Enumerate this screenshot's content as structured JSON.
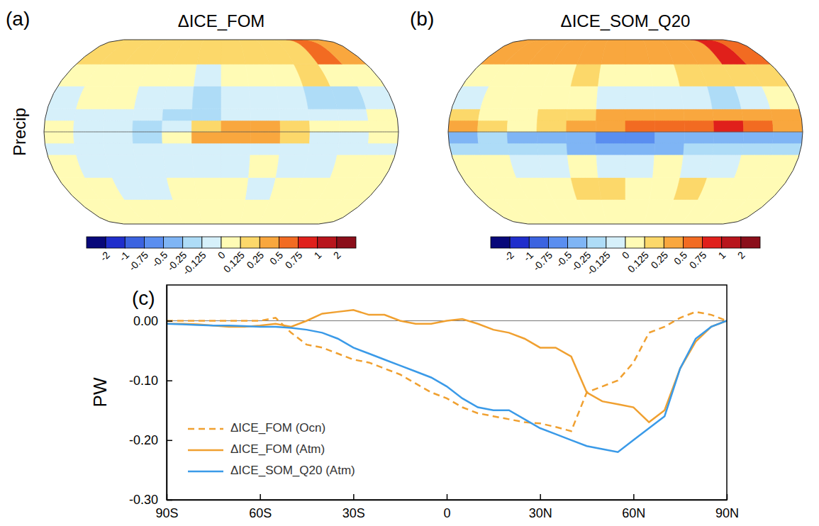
{
  "chart_data": [
    {
      "type": "heatmap",
      "panel_label": "(a)",
      "title": "ΔICE_FOM",
      "ylabel": "Precip",
      "lon_edges": [
        0,
        30,
        60,
        90,
        120,
        150,
        180,
        210,
        240,
        270,
        300,
        330,
        360
      ],
      "lat_edges": [
        -90,
        -60,
        -40,
        -20,
        -10,
        0,
        10,
        20,
        40,
        60,
        90
      ],
      "cells": [
        [
          0.05,
          0.05,
          0.05,
          0.05,
          0.05,
          0.05,
          0.05,
          0.05,
          0.05,
          0.05,
          0.05,
          0.05
        ],
        [
          0.05,
          0.05,
          -0.05,
          -0.05,
          0.05,
          0.05,
          0.05,
          -0.05,
          0.05,
          0.05,
          0.05,
          0.05
        ],
        [
          0.05,
          -0.05,
          -0.1,
          -0.05,
          -0.05,
          -0.1,
          -0.05,
          0.05,
          -0.05,
          -0.05,
          0.05,
          0.05
        ],
        [
          -0.05,
          -0.05,
          -0.1,
          -0.1,
          -0.1,
          -0.05,
          -0.1,
          -0.1,
          -0.05,
          -0.1,
          -0.05,
          -0.05
        ],
        [
          0.05,
          -0.05,
          -0.1,
          -0.2,
          0.1,
          0.3,
          0.35,
          0.3,
          0.2,
          -0.05,
          -0.1,
          0.05
        ],
        [
          0.05,
          -0.05,
          -0.1,
          -0.15,
          -0.1,
          0.2,
          0.3,
          0.3,
          0.2,
          0.1,
          0.05,
          0.05
        ],
        [
          -0.05,
          -0.05,
          -0.1,
          -0.1,
          -0.15,
          -0.2,
          -0.1,
          -0.05,
          -0.1,
          -0.05,
          -0.05,
          0.05
        ],
        [
          -0.05,
          0.05,
          0.05,
          -0.05,
          -0.1,
          -0.15,
          -0.1,
          -0.05,
          -0.05,
          -0.15,
          -0.2,
          -0.05
        ],
        [
          0.05,
          0.05,
          0.05,
          0.05,
          0.05,
          -0.05,
          0.05,
          0.05,
          0.05,
          0.15,
          0.1,
          0.05
        ],
        [
          0.15,
          0.15,
          0.15,
          0.15,
          0.15,
          0.15,
          0.15,
          0.15,
          0.2,
          0.2,
          0.6,
          0.3
        ]
      ],
      "colorbar": {
        "levels": [
          -2,
          -1,
          -0.75,
          -0.5,
          -0.25,
          -0.125,
          0,
          0.125,
          0.25,
          0.5,
          0.75,
          1,
          2
        ],
        "colors": [
          "#08087a",
          "#1f2ecc",
          "#3b63e0",
          "#5a8ef0",
          "#7fb5f5",
          "#aedcf7",
          "#d6f0fa",
          "#fffbb5",
          "#fcd86a",
          "#f9a73e",
          "#f26b22",
          "#e0201b",
          "#b8151c",
          "#8b0e1a"
        ]
      }
    },
    {
      "type": "heatmap",
      "panel_label": "(b)",
      "title": "ΔICE_SOM_Q20",
      "lon_edges": [
        0,
        30,
        60,
        90,
        120,
        150,
        180,
        210,
        240,
        270,
        300,
        330,
        360
      ],
      "lat_edges": [
        -90,
        -60,
        -40,
        -20,
        -10,
        0,
        10,
        20,
        40,
        60,
        90
      ],
      "cells": [
        [
          0.1,
          0.05,
          0.05,
          0.05,
          0.1,
          0.05,
          0.1,
          0.05,
          0.05,
          0.05,
          0.1,
          0.1
        ],
        [
          0.1,
          0.1,
          0.05,
          0.05,
          0.15,
          0.15,
          0.05,
          0.1,
          0.15,
          0.05,
          0.1,
          0.1
        ],
        [
          0.05,
          0.05,
          -0.05,
          -0.1,
          0.05,
          -0.05,
          -0.05,
          0.05,
          -0.05,
          -0.1,
          0.05,
          0.05
        ],
        [
          -0.15,
          -0.2,
          -0.2,
          -0.25,
          -0.3,
          -0.4,
          -0.35,
          -0.3,
          -0.2,
          -0.2,
          -0.2,
          -0.15
        ],
        [
          -0.3,
          -0.2,
          -0.3,
          -0.4,
          -0.5,
          -0.6,
          -0.6,
          -0.5,
          -0.4,
          -0.3,
          -0.35,
          -0.3
        ],
        [
          0.3,
          0.2,
          0.1,
          0.2,
          0.3,
          0.4,
          0.5,
          0.6,
          0.7,
          0.8,
          0.5,
          0.4
        ],
        [
          0.2,
          0.1,
          0.1,
          0.15,
          0.2,
          0.3,
          0.35,
          0.3,
          0.3,
          0.4,
          0.3,
          0.25
        ],
        [
          -0.05,
          0.05,
          0.1,
          0.05,
          0.05,
          -0.1,
          -0.05,
          -0.1,
          -0.05,
          -0.15,
          -0.1,
          0.05
        ],
        [
          0.1,
          0.1,
          0.1,
          0.1,
          0.15,
          0.1,
          0.1,
          0.1,
          0.15,
          0.2,
          0.2,
          0.15
        ],
        [
          0.3,
          0.3,
          0.3,
          0.3,
          0.3,
          0.3,
          0.3,
          0.3,
          0.3,
          0.4,
          0.8,
          0.5
        ]
      ],
      "colorbar": {
        "levels": [
          -2,
          -1,
          -0.75,
          -0.5,
          -0.25,
          -0.125,
          0,
          0.125,
          0.25,
          0.5,
          0.75,
          1,
          2
        ],
        "colors": [
          "#08087a",
          "#1f2ecc",
          "#3b63e0",
          "#5a8ef0",
          "#7fb5f5",
          "#aedcf7",
          "#d6f0fa",
          "#fffbb5",
          "#fcd86a",
          "#f9a73e",
          "#f26b22",
          "#e0201b",
          "#b8151c",
          "#8b0e1a"
        ]
      }
    },
    {
      "type": "line",
      "panel_label": "(c)",
      "ylabel": "PW",
      "legend": "lower left",
      "x": [
        -90,
        -85,
        -80,
        -75,
        -70,
        -65,
        -60,
        -55,
        -50,
        -45,
        -40,
        -35,
        -30,
        -25,
        -20,
        -15,
        -10,
        -5,
        0,
        5,
        10,
        15,
        20,
        25,
        30,
        35,
        40,
        45,
        50,
        55,
        60,
        65,
        70,
        75,
        80,
        85,
        90
      ],
      "xlim": [
        -90,
        90
      ],
      "xticks": [
        {
          "value": -90,
          "label": "90S"
        },
        {
          "value": -60,
          "label": "60S"
        },
        {
          "value": -30,
          "label": "30S"
        },
        0,
        {
          "value": 30,
          "label": "30N"
        },
        {
          "value": 60,
          "label": "60N"
        },
        {
          "value": 90,
          "label": "90N"
        }
      ],
      "ylim": [
        -0.3,
        0.06
      ],
      "yticks": [
        {
          "value": -0.3,
          "label": "-0.30"
        },
        {
          "value": -0.2,
          "label": "-0.20"
        },
        {
          "value": -0.1,
          "label": "-0.10"
        },
        {
          "value": 0,
          "label": "0.00"
        }
      ],
      "series": [
        {
          "name": "ΔICE_FOM (Ocn)",
          "color": "#f0a030",
          "line_style": "dashed",
          "values": [
            0,
            0,
            0,
            0,
            0,
            0,
            0,
            0.005,
            -0.02,
            -0.04,
            -0.045,
            -0.055,
            -0.065,
            -0.07,
            -0.08,
            -0.09,
            -0.105,
            -0.12,
            -0.13,
            -0.145,
            -0.155,
            -0.16,
            -0.165,
            -0.17,
            -0.172,
            -0.178,
            -0.185,
            -0.12,
            -0.11,
            -0.1,
            -0.07,
            -0.02,
            -0.01,
            0.005,
            0.015,
            0.01,
            0
          ]
        },
        {
          "name": "ΔICE_FOM (Atm)",
          "color": "#f0a030",
          "line_style": "solid",
          "values": [
            -0.005,
            -0.005,
            -0.006,
            -0.008,
            -0.01,
            -0.01,
            -0.008,
            -0.005,
            -0.01,
            0,
            0.012,
            0.015,
            0.018,
            0.01,
            0.01,
            0,
            -0.005,
            -0.005,
            0,
            0.003,
            -0.005,
            -0.015,
            -0.02,
            -0.03,
            -0.045,
            -0.045,
            -0.06,
            -0.12,
            -0.135,
            -0.14,
            -0.145,
            -0.17,
            -0.15,
            -0.08,
            -0.035,
            -0.01,
            0
          ]
        },
        {
          "name": "ΔICE_SOM_Q20 (Atm)",
          "color": "#3a9ae8",
          "line_style": "solid",
          "values": [
            -0.005,
            -0.006,
            -0.007,
            -0.008,
            -0.008,
            -0.009,
            -0.01,
            -0.01,
            -0.012,
            -0.015,
            -0.02,
            -0.03,
            -0.045,
            -0.055,
            -0.065,
            -0.075,
            -0.085,
            -0.095,
            -0.11,
            -0.13,
            -0.145,
            -0.15,
            -0.15,
            -0.165,
            -0.18,
            -0.19,
            -0.2,
            -0.21,
            -0.215,
            -0.22,
            -0.2,
            -0.18,
            -0.16,
            -0.08,
            -0.03,
            -0.01,
            0
          ]
        }
      ]
    }
  ]
}
